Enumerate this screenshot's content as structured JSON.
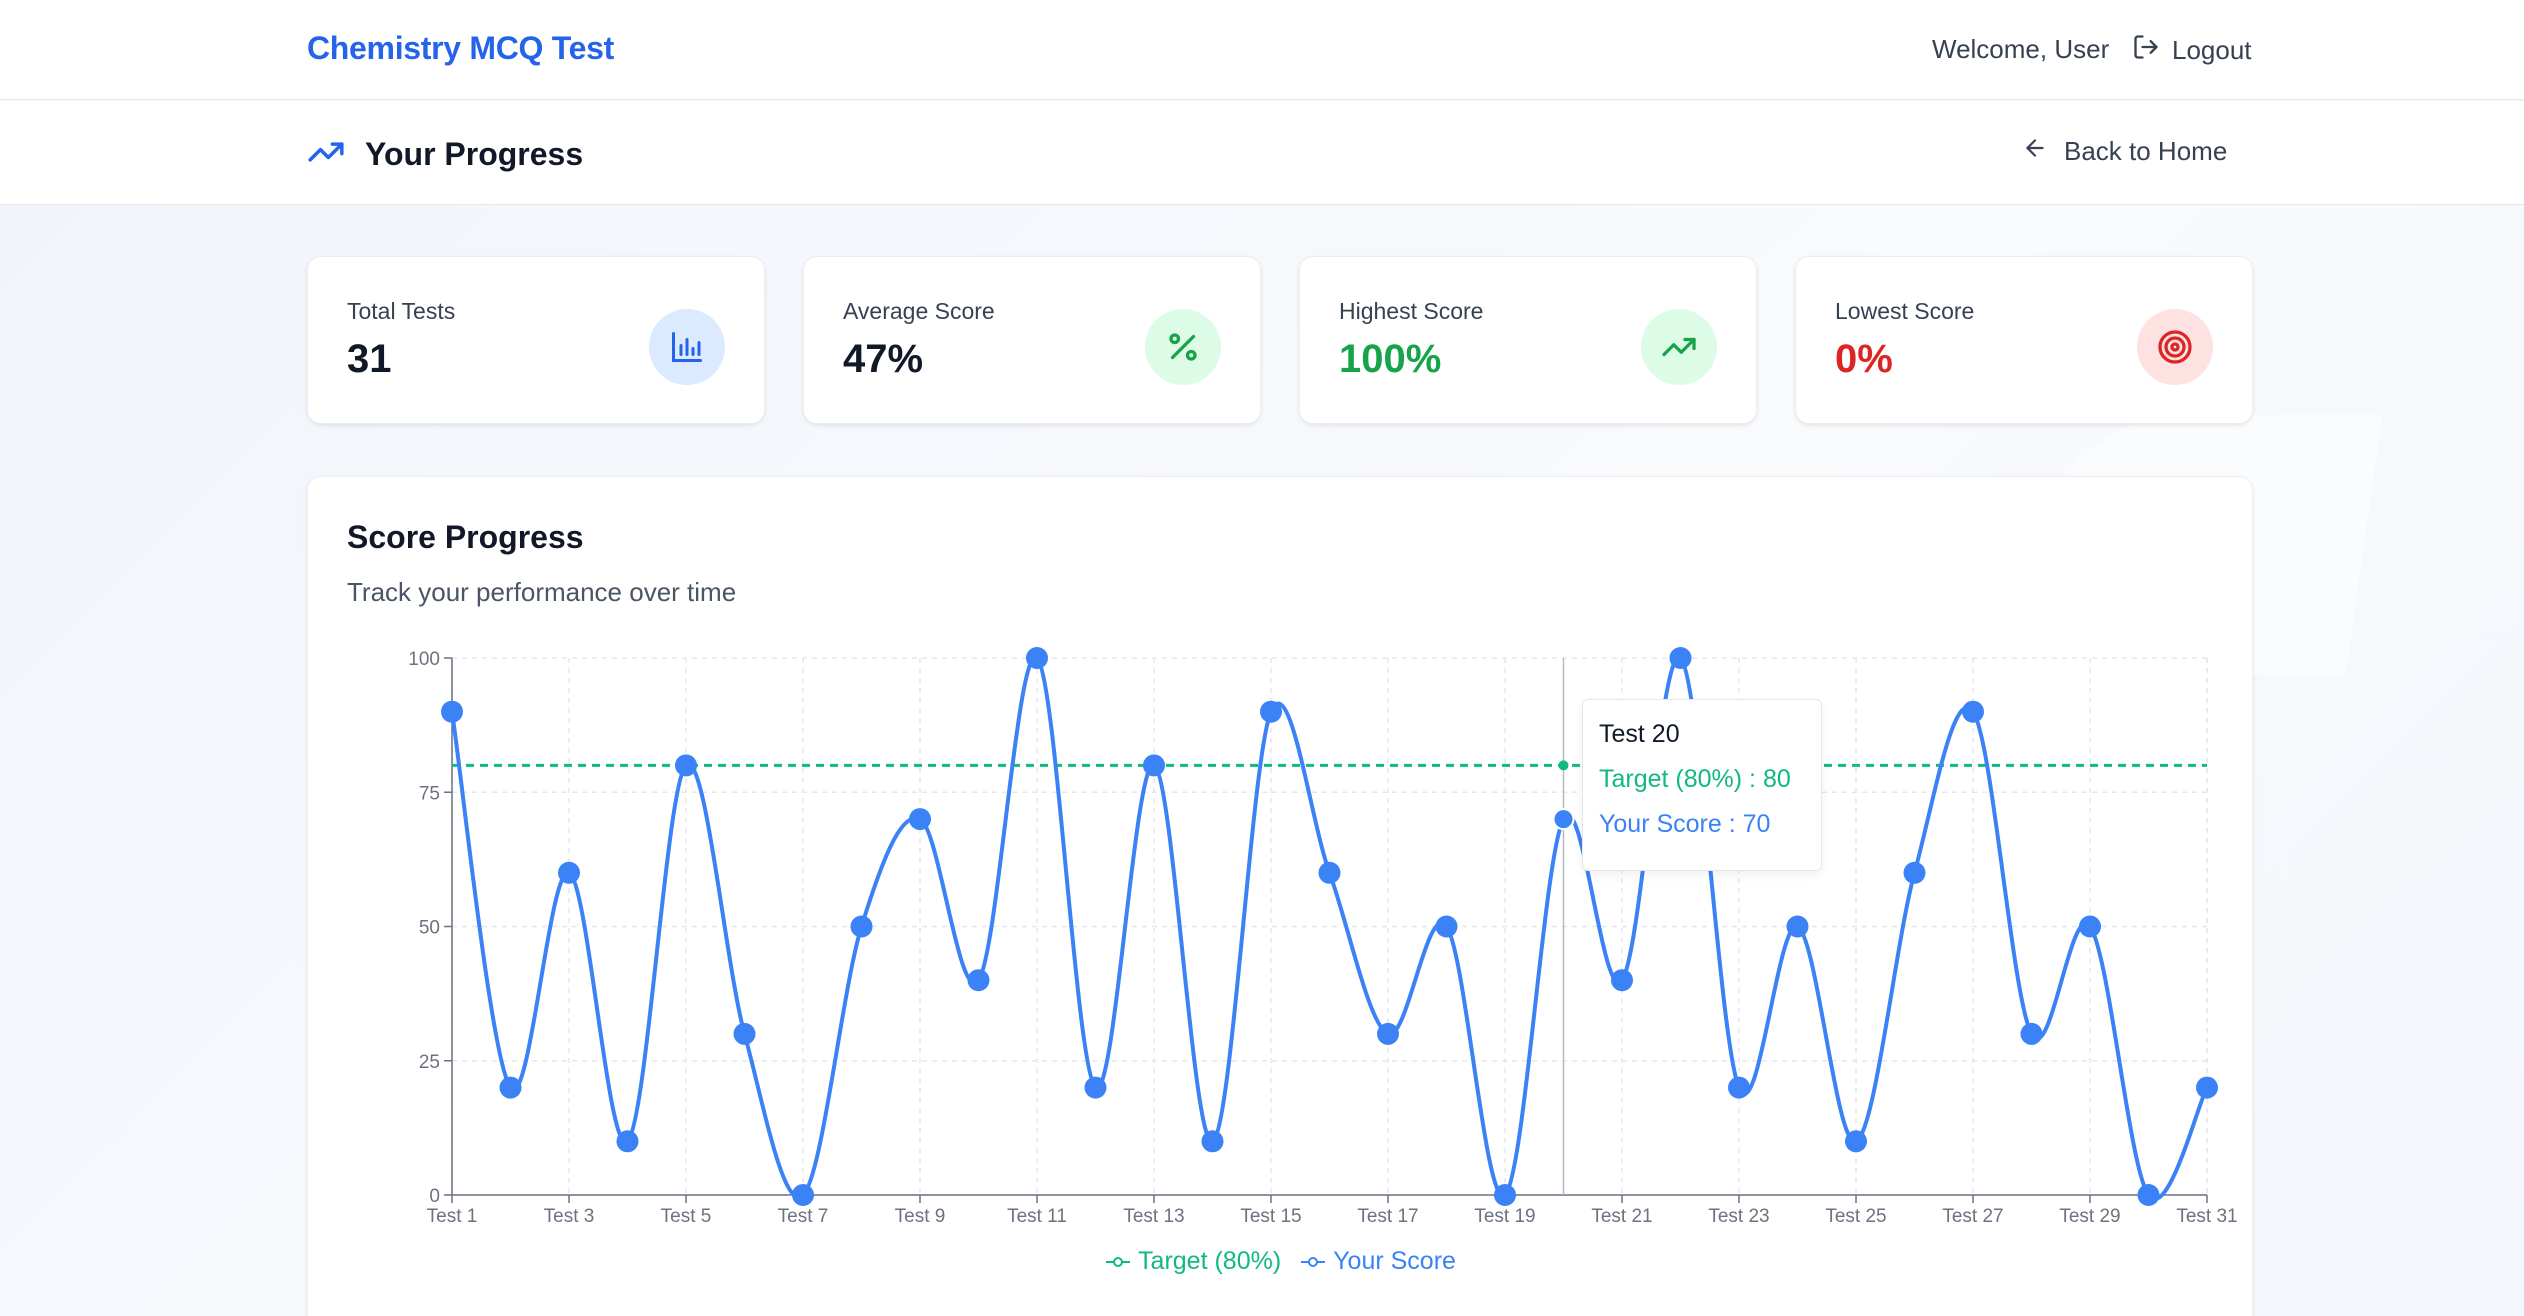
{
  "header": {
    "brand": "Chemistry MCQ Test",
    "welcome": "Welcome, User",
    "logout_label": "Logout"
  },
  "subheader": {
    "title": "Your Progress",
    "back_label": "Back to Home"
  },
  "stats": [
    {
      "label": "Total Tests",
      "value": "31",
      "icon": "bar-chart-icon",
      "color": "#111827",
      "icon_bg": "#dbeafe",
      "icon_color": "#2563eb"
    },
    {
      "label": "Average Score",
      "value": "47%",
      "icon": "percent-icon",
      "color": "#111827",
      "icon_bg": "#dcfce7",
      "icon_color": "#16a34a"
    },
    {
      "label": "Highest Score",
      "value": "100%",
      "icon": "trending-up-icon",
      "color": "#16a34a",
      "icon_bg": "#dcfce7",
      "icon_color": "#16a34a"
    },
    {
      "label": "Lowest Score",
      "value": "0%",
      "icon": "target-icon",
      "color": "#dc2626",
      "icon_bg": "#fee2e2",
      "icon_color": "#dc2626"
    }
  ],
  "chart": {
    "title": "Score Progress",
    "subtitle": "Track your performance over time"
  },
  "chart_data": {
    "type": "line",
    "x": [
      "Test 1",
      "Test 2",
      "Test 3",
      "Test 4",
      "Test 5",
      "Test 6",
      "Test 7",
      "Test 8",
      "Test 9",
      "Test 10",
      "Test 11",
      "Test 12",
      "Test 13",
      "Test 14",
      "Test 15",
      "Test 16",
      "Test 17",
      "Test 18",
      "Test 19",
      "Test 20",
      "Test 21",
      "Test 22",
      "Test 23",
      "Test 24",
      "Test 25",
      "Test 26",
      "Test 27",
      "Test 28",
      "Test 29",
      "Test 30",
      "Test 31"
    ],
    "x_tick_labels": [
      "Test 1",
      "Test 3",
      "Test 5",
      "Test 7",
      "Test 9",
      "Test 11",
      "Test 13",
      "Test 15",
      "Test 17",
      "Test 19",
      "Test 21",
      "Test 23",
      "Test 25",
      "Test 27",
      "Test 29",
      "Test 31"
    ],
    "series": [
      {
        "name": "Target (80%)",
        "color": "#10b981",
        "style": "dashed",
        "values": [
          80,
          80,
          80,
          80,
          80,
          80,
          80,
          80,
          80,
          80,
          80,
          80,
          80,
          80,
          80,
          80,
          80,
          80,
          80,
          80,
          80,
          80,
          80,
          80,
          80,
          80,
          80,
          80,
          80,
          80,
          80
        ]
      },
      {
        "name": "Your Score",
        "color": "#3b82f6",
        "style": "solid",
        "values": [
          90,
          20,
          60,
          10,
          80,
          30,
          0,
          50,
          70,
          40,
          100,
          20,
          80,
          10,
          90,
          60,
          30,
          50,
          0,
          70,
          40,
          100,
          20,
          50,
          10,
          60,
          90,
          30,
          50,
          0,
          20
        ]
      }
    ],
    "yticks": [
      0,
      25,
      50,
      75,
      100
    ],
    "ylim": [
      0,
      100
    ],
    "grid": true,
    "legend": "bottom-center",
    "tooltip": {
      "title": "Test 20",
      "target_text": "Target (80%) : 80",
      "score_text": "Your Score : 70",
      "index": 19
    }
  }
}
